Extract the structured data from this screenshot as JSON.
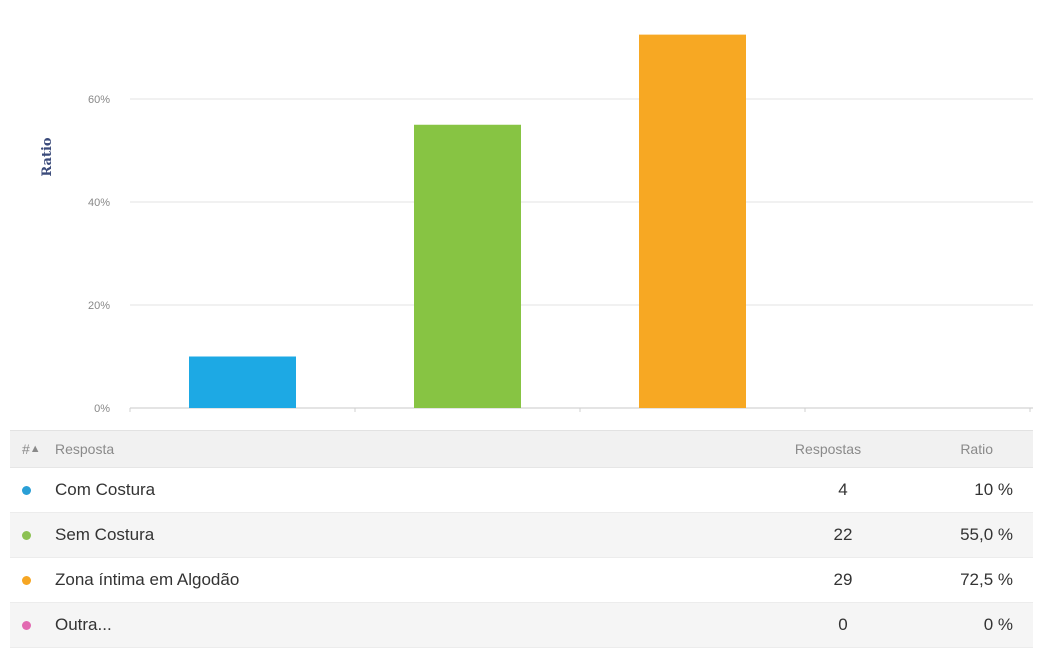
{
  "chart_data": {
    "type": "bar",
    "categories": [
      "Com Costura",
      "Sem Costura",
      "Zona íntima em Algodão",
      "Outra..."
    ],
    "values": [
      10,
      55.0,
      72.5,
      0
    ],
    "colors": [
      "#1da9e4",
      "#87c443",
      "#f7a823",
      "#e26ab1"
    ],
    "ylabel": "Ratio",
    "yticks": [
      "0%",
      "20%",
      "40%",
      "60%"
    ],
    "ylim": [
      0,
      75
    ],
    "grid": true
  },
  "table": {
    "headers": {
      "index": "#",
      "sort_indicator": "▲",
      "response": "Resposta",
      "count": "Respostas",
      "ratio": "Ratio"
    },
    "rows": [
      {
        "label": "Com Costura",
        "count": "4",
        "ratio": "10 %",
        "color": "#2a9fd6"
      },
      {
        "label": "Sem Costura",
        "count": "22",
        "ratio": "55,0 %",
        "color": "#8cc152"
      },
      {
        "label": "Zona íntima em Algodão",
        "count": "29",
        "ratio": "72,5 %",
        "color": "#f6a623"
      },
      {
        "label": "Outra...",
        "count": "0",
        "ratio": "0 %",
        "color": "#e26ab1"
      }
    ]
  }
}
